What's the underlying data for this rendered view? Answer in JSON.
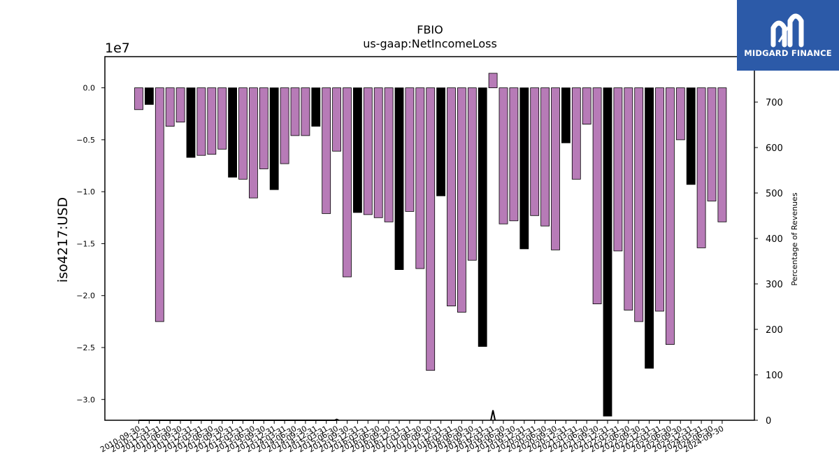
{
  "chart_data": {
    "type": "bar",
    "title": "FBIO",
    "subtitle": "us-gaap:NetIncomeLoss",
    "ylabel": "iso4217:USD",
    "y_offset_label": "1e7",
    "y2label": "Percentage of Revenues",
    "ylim": [
      -32000000,
      3000000
    ],
    "y2lim": [
      0,
      800
    ],
    "yticks": [
      "0.0",
      "−0.5",
      "−1.0",
      "−1.5",
      "−2.0",
      "−2.5",
      "−3.0"
    ],
    "y2ticks": [
      "0",
      "100",
      "200",
      "300",
      "400",
      "500",
      "600",
      "700",
      "800"
    ],
    "colors": {
      "quarter": "#b77bb7",
      "annual": "#000000"
    },
    "categories": [
      "2010-09-30",
      "2010-12-31",
      "2011-03-31",
      "2011-06-30",
      "2011-09-30",
      "2011-12-31",
      "2012-03-31",
      "2012-06-30",
      "2012-09-30",
      "2012-12-31",
      "2013-03-31",
      "2013-06-30",
      "2013-09-30",
      "2013-12-31",
      "2014-03-31",
      "2014-06-30",
      "2014-09-30",
      "2014-12-31",
      "2015-03-31",
      "2015-06-30",
      "2015-09-30",
      "2015-12-31",
      "2016-03-31",
      "2016-06-30",
      "2016-09-30",
      "2016-12-31",
      "2017-03-31",
      "2017-06-30",
      "2017-09-30",
      "2017-12-31",
      "2018-03-31",
      "2018-06-30",
      "2018-09-30",
      "2018-12-31",
      "2019-03-31",
      "2019-06-30",
      "2019-09-30",
      "2019-12-31",
      "2020-03-31",
      "2020-06-30",
      "2020-09-30",
      "2020-12-31",
      "2021-03-31",
      "2021-06-30",
      "2021-09-30",
      "2021-12-31",
      "2022-03-31",
      "2022-06-30",
      "2022-09-30",
      "2022-12-31",
      "2023-03-31",
      "2023-06-30",
      "2023-09-30",
      "2023-12-31",
      "2024-03-31",
      "2024-06-30",
      "2024-09-30"
    ],
    "values": [
      -2100000,
      -1600000,
      -22500000,
      -3700000,
      -3300000,
      -6700000,
      -6500000,
      -6400000,
      -5900000,
      -8600000,
      -8800000,
      -10600000,
      -7800000,
      -9800000,
      -7300000,
      -4600000,
      -4600000,
      -3700000,
      -12100000,
      -6100000,
      -18200000,
      -12000000,
      -12200000,
      -12500000,
      -12900000,
      -17500000,
      -11900000,
      -17400000,
      -27200000,
      -10400000,
      -21000000,
      -21600000,
      -16600000,
      -24900000,
      1400000,
      -13100000,
      -12800000,
      -15500000,
      -12300000,
      -13300000,
      -15600000,
      -5300000,
      -8800000,
      -3500000,
      -20800000,
      -31600000,
      -15700000,
      -21400000,
      -22500000,
      -27000000,
      -21500000,
      -24700000,
      -5000000,
      -9300000,
      -15400000,
      -10900000,
      -12900000
    ],
    "annual_flags": [
      0,
      1,
      0,
      0,
      0,
      1,
      0,
      0,
      0,
      1,
      0,
      0,
      0,
      1,
      0,
      0,
      0,
      1,
      0,
      0,
      0,
      1,
      0,
      0,
      0,
      1,
      0,
      0,
      0,
      1,
      0,
      0,
      0,
      1,
      0,
      0,
      0,
      1,
      0,
      0,
      0,
      1,
      0,
      0,
      0,
      1,
      0,
      0,
      0,
      1,
      0,
      0,
      0,
      1,
      0,
      0,
      0
    ],
    "revenue_pct_line": [
      0,
      0,
      0,
      0,
      0,
      0,
      0,
      0,
      0,
      0,
      0,
      0,
      0,
      0,
      0,
      0,
      0,
      0,
      0,
      0,
      null,
      null,
      null,
      null,
      null,
      null,
      null,
      null,
      null,
      null,
      null,
      null,
      null,
      null,
      null,
      null,
      null,
      null,
      null,
      null,
      null,
      null,
      null,
      null,
      null,
      null,
      null,
      null,
      null,
      null,
      null,
      null,
      null,
      null,
      null,
      null,
      null
    ],
    "revenue_pct_spikes": [
      {
        "index": 19,
        "value": 2
      },
      {
        "index": 34,
        "value": 22
      }
    ]
  },
  "logo": {
    "text": "MIDGARD FINANCE"
  }
}
